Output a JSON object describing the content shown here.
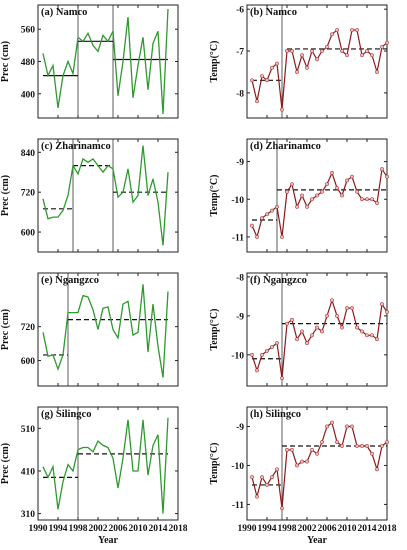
{
  "figure": {
    "colors": {
      "precip": "#2e9a2e",
      "temp": "#8b1a1a",
      "marker": "#f2b8b8",
      "axis": "#222222"
    }
  },
  "chart_data": [
    {
      "type": "line",
      "id": "a",
      "title": "(a) Namco",
      "xlabel": "",
      "ylabel": "Prec (cm)",
      "xlim": [
        1990,
        2018
      ],
      "ylim": [
        340,
        620
      ],
      "xticks": [
        1990,
        1994,
        1998,
        2002,
        2006,
        2010,
        2014,
        2018
      ],
      "xtick_labels": [
        "",
        "",
        "",
        "",
        "",
        "",
        "",
        ""
      ],
      "yticks": [
        400,
        480,
        560
      ],
      "ytick_labels": [
        "400",
        "480",
        "560"
      ],
      "series": [
        {
          "style": "precip",
          "x": [
            1991,
            1992,
            1993,
            1994,
            1995,
            1996,
            1997,
            1998,
            1999,
            2000,
            2001,
            2002,
            2003,
            2004,
            2005,
            2006,
            2007,
            2008,
            2009,
            2010,
            2011,
            2012,
            2013,
            2014,
            2015,
            2016
          ],
          "y": [
            500,
            445,
            470,
            365,
            445,
            480,
            450,
            540,
            530,
            550,
            520,
            505,
            545,
            530,
            555,
            395,
            480,
            590,
            390,
            470,
            540,
            410,
            525,
            555,
            350,
            610
          ]
        }
      ],
      "breaks": [
        1998,
        2005
      ],
      "means": [
        {
          "x": [
            1991,
            1998
          ],
          "y": 445,
          "style": "solid"
        },
        {
          "x": [
            1998,
            2005
          ],
          "y": 530,
          "style": "solid"
        },
        {
          "x": [
            2005,
            2016
          ],
          "y": 485,
          "style": "solid"
        }
      ]
    },
    {
      "type": "line",
      "id": "b",
      "title": "(b) Namco",
      "xlabel": "",
      "ylabel": "Temp(°C)",
      "xlim": [
        1990,
        2018
      ],
      "ylim": [
        -8.6,
        -5.9
      ],
      "xticks": [
        1990,
        1994,
        1998,
        2002,
        2006,
        2010,
        2014,
        2018
      ],
      "xtick_labels": [
        "",
        "",
        "",
        "",
        "",
        "",
        "",
        ""
      ],
      "yticks": [
        -8,
        -7,
        -6
      ],
      "ytick_labels": [
        "-8",
        "-7",
        "-6"
      ],
      "series": [
        {
          "style": "temp",
          "x": [
            1991,
            1992,
            1993,
            1994,
            1995,
            1996,
            1997,
            1998,
            1999,
            2000,
            2001,
            2002,
            2003,
            2004,
            2005,
            2006,
            2007,
            2008,
            2009,
            2010,
            2011,
            2012,
            2013,
            2014,
            2015,
            2016,
            2017,
            2018
          ],
          "y": [
            -7.7,
            -8.2,
            -7.6,
            -7.7,
            -7.4,
            -7.3,
            -8.4,
            -7.0,
            -7.0,
            -7.5,
            -7.1,
            -7.4,
            -7.0,
            -7.2,
            -7.0,
            -6.9,
            -6.6,
            -6.5,
            -7.0,
            -7.1,
            -6.5,
            -6.5,
            -7.1,
            -7.0,
            -7.1,
            -7.5,
            -6.9,
            -6.8
          ]
        }
      ],
      "breaks": [
        1997
      ],
      "means": [
        {
          "x": [
            1991,
            1997
          ],
          "y": -7.7,
          "style": "dashed"
        },
        {
          "x": [
            1998,
            2018
          ],
          "y": -6.95,
          "style": "dashed"
        }
      ]
    },
    {
      "type": "line",
      "id": "c",
      "title": "(c) Zharinamco",
      "xlabel": "",
      "ylabel": "Prec (cm)",
      "xlim": [
        1990,
        2018
      ],
      "ylim": [
        540,
        880
      ],
      "xticks": [
        1990,
        1994,
        1998,
        2002,
        2006,
        2010,
        2014,
        2018
      ],
      "xtick_labels": [
        "",
        "",
        "",
        "",
        "",
        "",
        "",
        ""
      ],
      "yticks": [
        600,
        720,
        840
      ],
      "ytick_labels": [
        "600",
        "720",
        "840"
      ],
      "series": [
        {
          "style": "precip",
          "x": [
            1991,
            1992,
            1993,
            1994,
            1995,
            1996,
            1997,
            1998,
            1999,
            2000,
            2001,
            2002,
            2003,
            2004,
            2005,
            2006,
            2007,
            2008,
            2009,
            2010,
            2011,
            2012,
            2013,
            2014,
            2015,
            2016
          ],
          "y": [
            700,
            640,
            645,
            645,
            665,
            710,
            800,
            775,
            820,
            810,
            820,
            800,
            780,
            800,
            790,
            705,
            720,
            790,
            690,
            710,
            860,
            710,
            760,
            690,
            560,
            780
          ]
        }
      ],
      "breaks": [
        1997,
        2005
      ],
      "means": [
        {
          "x": [
            1991,
            1997
          ],
          "y": 670,
          "style": "dashed"
        },
        {
          "x": [
            1997,
            2005
          ],
          "y": 800,
          "style": "dashed"
        },
        {
          "x": [
            2005,
            2016
          ],
          "y": 720,
          "style": "dashed"
        }
      ]
    },
    {
      "type": "line",
      "id": "d",
      "title": "(d) Zharinamco",
      "xlabel": "",
      "ylabel": "Temp(°C)",
      "xlim": [
        1990,
        2018
      ],
      "ylim": [
        -11.4,
        -8.4
      ],
      "xticks": [
        1990,
        1994,
        1998,
        2002,
        2006,
        2010,
        2014,
        2018
      ],
      "xtick_labels": [
        "",
        "",
        "",
        "",
        "",
        "",
        "",
        ""
      ],
      "yticks": [
        -11,
        -10,
        -9
      ],
      "ytick_labels": [
        "-11",
        "-10",
        "-9"
      ],
      "series": [
        {
          "style": "temp",
          "x": [
            1991,
            1992,
            1993,
            1994,
            1995,
            1996,
            1997,
            1998,
            1999,
            2000,
            2001,
            2002,
            2003,
            2004,
            2005,
            2006,
            2007,
            2008,
            2009,
            2010,
            2011,
            2012,
            2013,
            2014,
            2015,
            2016,
            2017,
            2018
          ],
          "y": [
            -10.7,
            -11.0,
            -10.5,
            -10.4,
            -10.3,
            -10.2,
            -11.0,
            -9.8,
            -9.6,
            -10.2,
            -9.9,
            -10.2,
            -10.0,
            -9.9,
            -9.8,
            -9.6,
            -9.3,
            -9.7,
            -9.9,
            -9.5,
            -9.4,
            -9.8,
            -10.0,
            -10.0,
            -10.0,
            -10.1,
            -9.2,
            -9.4
          ]
        }
      ],
      "breaks": [
        1996
      ],
      "means": [
        {
          "x": [
            1991,
            1996
          ],
          "y": -10.55,
          "style": "dashed"
        },
        {
          "x": [
            1996,
            2018
          ],
          "y": -9.75,
          "style": "dashed"
        }
      ]
    },
    {
      "type": "line",
      "id": "e",
      "title": "(e) Ngangzco",
      "xlabel": "",
      "ylabel": "Prec (cm)",
      "xlim": [
        1990,
        2018
      ],
      "ylim": [
        510,
        910
      ],
      "xticks": [
        1990,
        1994,
        1998,
        2002,
        2006,
        2010,
        2014,
        2018
      ],
      "xtick_labels": [
        "",
        "",
        "",
        "",
        "",
        "",
        "",
        ""
      ],
      "yticks": [
        600,
        720
      ],
      "ytick_labels": [
        "600",
        "720"
      ],
      "series": [
        {
          "style": "precip",
          "x": [
            1991,
            1992,
            1993,
            1994,
            1995,
            1996,
            1997,
            1998,
            1999,
            2000,
            2001,
            2002,
            2003,
            2004,
            2005,
            2006,
            2007,
            2008,
            2009,
            2010,
            2011,
            2012,
            2013,
            2014,
            2015,
            2016
          ],
          "y": [
            700,
            615,
            620,
            570,
            620,
            770,
            770,
            770,
            830,
            825,
            780,
            710,
            785,
            790,
            710,
            680,
            800,
            810,
            690,
            700,
            870,
            630,
            800,
            650,
            540,
            845
          ]
        }
      ],
      "breaks": [
        1996
      ],
      "means": [
        {
          "x": [
            1991,
            1996
          ],
          "y": 620,
          "style": "dashed"
        },
        {
          "x": [
            1996,
            2016
          ],
          "y": 745,
          "style": "dashed"
        }
      ]
    },
    {
      "type": "line",
      "id": "f",
      "title": "(f) Ngangzco",
      "xlabel": "",
      "ylabel": "Temp(°C)",
      "xlim": [
        1990,
        2018
      ],
      "ylim": [
        -10.8,
        -7.9
      ],
      "xticks": [
        1990,
        1994,
        1998,
        2002,
        2006,
        2010,
        2014,
        2018
      ],
      "xtick_labels": [
        "",
        "",
        "",
        "",
        "",
        "",
        "",
        ""
      ],
      "yticks": [
        -10,
        -9,
        -8
      ],
      "ytick_labels": [
        "-10",
        "-9",
        "-8"
      ],
      "series": [
        {
          "style": "temp",
          "x": [
            1991,
            1992,
            1993,
            1994,
            1995,
            1996,
            1997,
            1998,
            1999,
            2000,
            2001,
            2002,
            2003,
            2004,
            2005,
            2006,
            2007,
            2008,
            2009,
            2010,
            2011,
            2012,
            2013,
            2014,
            2015,
            2016,
            2017,
            2018
          ],
          "y": [
            -10.0,
            -10.4,
            -10.0,
            -9.9,
            -9.8,
            -9.7,
            -10.6,
            -9.2,
            -9.1,
            -9.6,
            -9.4,
            -9.7,
            -9.5,
            -9.3,
            -9.4,
            -9.0,
            -8.6,
            -9.0,
            -9.3,
            -8.8,
            -8.8,
            -9.3,
            -9.4,
            -9.5,
            -9.5,
            -9.6,
            -8.7,
            -8.9
          ]
        }
      ],
      "breaks": [
        1997
      ],
      "means": [
        {
          "x": [
            1991,
            1997
          ],
          "y": -10.1,
          "style": "dashed"
        },
        {
          "x": [
            1997,
            2018
          ],
          "y": -9.2,
          "style": "dashed"
        }
      ]
    },
    {
      "type": "line",
      "id": "g",
      "title": "(g) Silingco",
      "xlabel": "Year",
      "ylabel": "Prec (cm)",
      "xlim": [
        1990,
        2018
      ],
      "ylim": [
        295,
        560
      ],
      "xticks": [
        1990,
        1994,
        1998,
        2002,
        2006,
        2010,
        2014,
        2018
      ],
      "xtick_labels": [
        "1990",
        "1994",
        "1998",
        "2002",
        "2006",
        "2010",
        "2014",
        "2018"
      ],
      "yticks": [
        310,
        410,
        510
      ],
      "ytick_labels": [
        "310",
        "410",
        "510"
      ],
      "series": [
        {
          "style": "precip",
          "x": [
            1991,
            1992,
            1993,
            1994,
            1995,
            1996,
            1997,
            1998,
            1999,
            2000,
            2001,
            2002,
            2003,
            2004,
            2005,
            2006,
            2007,
            2008,
            2009,
            2010,
            2011,
            2012,
            2013,
            2014,
            2015,
            2016
          ],
          "y": [
            420,
            395,
            420,
            320,
            385,
            425,
            410,
            460,
            465,
            465,
            455,
            480,
            470,
            465,
            440,
            370,
            440,
            530,
            410,
            410,
            530,
            400,
            470,
            495,
            310,
            535
          ]
        }
      ],
      "breaks": [
        1998
      ],
      "means": [
        {
          "x": [
            1991,
            1998
          ],
          "y": 395,
          "style": "dashed"
        },
        {
          "x": [
            1998,
            2016
          ],
          "y": 450,
          "style": "dashed"
        }
      ]
    },
    {
      "type": "line",
      "id": "h",
      "title": "(h) Silingco",
      "xlabel": "Year",
      "ylabel": "Temp(°C)",
      "xlim": [
        1990,
        2018
      ],
      "ylim": [
        -11.4,
        -8.5
      ],
      "xticks": [
        1990,
        1994,
        1998,
        2002,
        2006,
        2010,
        2014,
        2018
      ],
      "xtick_labels": [
        "1990",
        "1994",
        "1998",
        "2002",
        "2006",
        "2010",
        "2014",
        "2018"
      ],
      "yticks": [
        -11,
        -10,
        -9
      ],
      "ytick_labels": [
        "-11",
        "-10",
        "-9"
      ],
      "series": [
        {
          "style": "temp",
          "x": [
            1991,
            1992,
            1993,
            1994,
            1995,
            1996,
            1997,
            1998,
            1999,
            2000,
            2001,
            2002,
            2003,
            2004,
            2005,
            2006,
            2007,
            2008,
            2009,
            2010,
            2011,
            2012,
            2013,
            2014,
            2015,
            2016,
            2017,
            2018
          ],
          "y": [
            -10.3,
            -10.8,
            -10.3,
            -10.5,
            -10.3,
            -10.1,
            -11.1,
            -9.6,
            -9.6,
            -10.0,
            -9.9,
            -9.9,
            -9.6,
            -9.7,
            -9.4,
            -9.0,
            -8.9,
            -9.4,
            -9.5,
            -9.0,
            -9.0,
            -9.5,
            -9.5,
            -9.5,
            -9.7,
            -10.1,
            -9.5,
            -9.4
          ]
        }
      ],
      "breaks": [
        1997
      ],
      "means": [
        {
          "x": [
            1991,
            1997
          ],
          "y": -10.5,
          "style": "dashed"
        },
        {
          "x": [
            1997,
            2018
          ],
          "y": -9.5,
          "style": "dashed"
        }
      ]
    }
  ]
}
